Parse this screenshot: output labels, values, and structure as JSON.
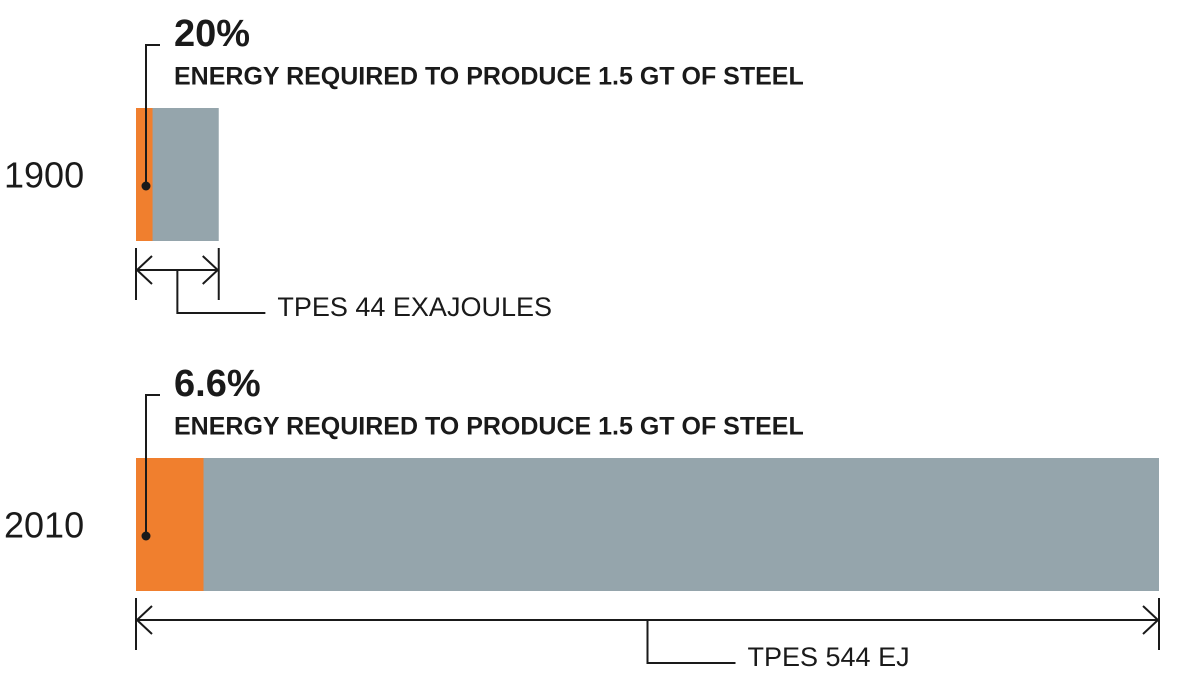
{
  "chart_data": {
    "type": "bar",
    "categories": [
      "1900",
      "2010"
    ],
    "totals": [
      44,
      544
    ],
    "total_labels": [
      "TPES 44 EXAJOULES",
      "TPES 544 EJ"
    ],
    "shares": [
      20,
      6.6
    ],
    "share_labels": [
      "20%",
      "6.6%"
    ],
    "captions": [
      "ENERGY REQUIRED TO PRODUCE 1.5 GT OF STEEL",
      "ENERGY REQUIRED TO PRODUCE 1.5 GT OF STEEL"
    ],
    "share_color": "#f07f2e",
    "total_color": "#95a5ac"
  }
}
